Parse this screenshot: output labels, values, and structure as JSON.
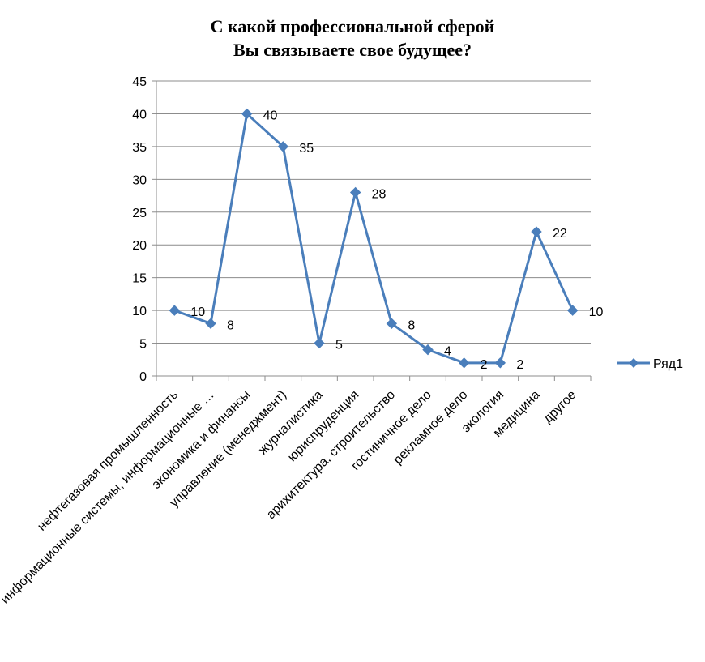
{
  "chart_data": {
    "type": "line",
    "title_line1": "С какой профессиональной сферой",
    "title_line2": "Вы связываете свое будущее?",
    "categories": [
      "нефтегазовая промышленность",
      "информационные системы, информационные …",
      "экономика и финансы",
      "управление (менеджмент)",
      "журналистика",
      "юриспруденция",
      "арихитектура, строительство",
      "гостиничное дело",
      "рекламное дело",
      "экология",
      "медицина",
      "другое"
    ],
    "series": [
      {
        "name": "Ряд1",
        "values": [
          10,
          8,
          40,
          35,
          5,
          28,
          8,
          4,
          2,
          2,
          22,
          10
        ]
      }
    ],
    "ylim": [
      0,
      45
    ],
    "yticks": [
      "0",
      "5",
      "10",
      "15",
      "20",
      "25",
      "30",
      "35",
      "40",
      "45"
    ],
    "grid": true,
    "legend_position": "right",
    "series_color": "#4a7ebb"
  }
}
